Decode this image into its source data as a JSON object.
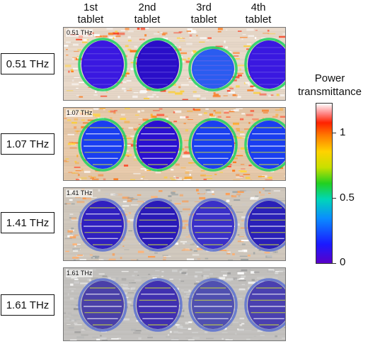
{
  "columns": [
    "1st\ntablet",
    "2nd\ntablet",
    "3rd\ntablet",
    "4th\ntablet"
  ],
  "panels": [
    {
      "frequency": "0.51 THz",
      "tag": "0.51 THz"
    },
    {
      "frequency": "1.07 THz",
      "tag": "1.07 THz"
    },
    {
      "frequency": "1.41 THz",
      "tag": "1.41 THz"
    },
    {
      "frequency": "1.61 THz",
      "tag": "1.61 THz"
    }
  ],
  "colorbar": {
    "title": "Power\ntransmittance",
    "ticks": [
      {
        "label": "1",
        "value": 1
      },
      {
        "label": "0.5",
        "value": 0.5
      },
      {
        "label": "0",
        "value": 0
      }
    ]
  },
  "colors": {
    "low": "#5a00c8",
    "mid": "#22d020",
    "high": "#ff2200",
    "max": "#ffffff"
  }
}
